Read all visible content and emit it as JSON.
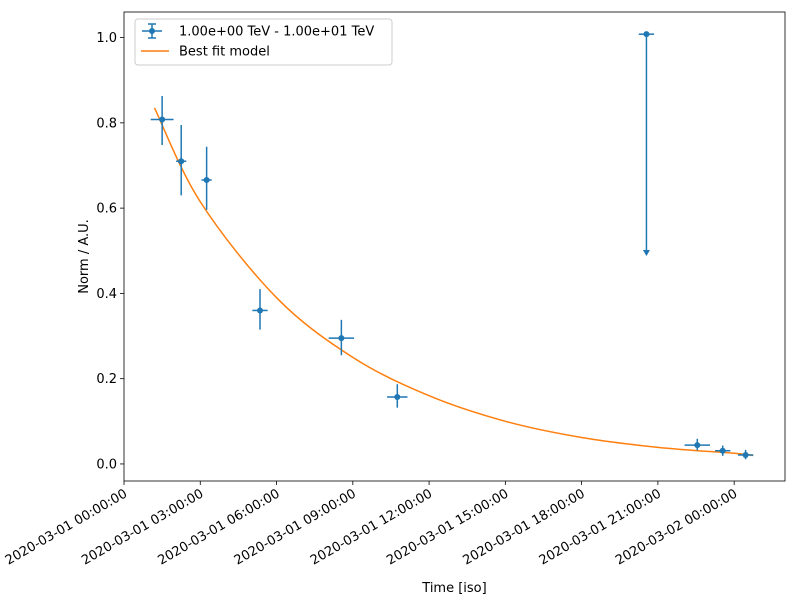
{
  "chart_data": {
    "type": "scatter",
    "xlabel": "Time [iso]",
    "ylabel": "Norm / A.U.",
    "x_range": [
      "2020-03-01 00:00:00",
      "2020-03-02 02:00:00"
    ],
    "ylim": [
      -0.04,
      1.06
    ],
    "x_ticks": [
      "2020-03-01 00:00:00",
      "2020-03-01 03:00:00",
      "2020-03-01 06:00:00",
      "2020-03-01 09:00:00",
      "2020-03-01 12:00:00",
      "2020-03-01 15:00:00",
      "2020-03-01 18:00:00",
      "2020-03-01 21:00:00",
      "2020-03-02 00:00:00"
    ],
    "y_ticks": [
      "0.0",
      "0.2",
      "0.4",
      "0.6",
      "0.8",
      "1.0"
    ],
    "grid": false,
    "legend_position": "top-left",
    "series": [
      {
        "name": "1.00e+00 TeV - 1.00e+01 TeV",
        "kind": "errorbar",
        "color": "#1f77b4",
        "points": [
          {
            "time": "2020-03-01 01:30:00",
            "time_min": "2020-03-01 01:03:00",
            "time_max": "2020-03-01 01:57:00",
            "y": 0.808,
            "y_err_low": 0.06,
            "y_err_high": 0.055
          },
          {
            "time": "2020-03-01 02:15:00",
            "time_min": "2020-03-01 02:03:00",
            "time_max": "2020-03-01 02:27:00",
            "y": 0.71,
            "y_err_low": 0.08,
            "y_err_high": 0.085
          },
          {
            "time": "2020-03-01 03:15:00",
            "time_min": "2020-03-01 03:03:00",
            "time_max": "2020-03-01 03:27:00",
            "y": 0.666,
            "y_err_low": 0.07,
            "y_err_high": 0.078
          },
          {
            "time": "2020-03-01 05:21:00",
            "time_min": "2020-03-01 05:03:00",
            "time_max": "2020-03-01 05:39:00",
            "y": 0.36,
            "y_err_low": 0.045,
            "y_err_high": 0.05
          },
          {
            "time": "2020-03-01 08:33:00",
            "time_min": "2020-03-01 08:03:00",
            "time_max": "2020-03-01 09:03:00",
            "y": 0.295,
            "y_err_low": 0.04,
            "y_err_high": 0.043
          },
          {
            "time": "2020-03-01 10:45:00",
            "time_min": "2020-03-01 10:21:00",
            "time_max": "2020-03-01 11:09:00",
            "y": 0.157,
            "y_err_low": 0.025,
            "y_err_high": 0.03
          },
          {
            "time": "2020-03-01 22:33:00",
            "time_min": "2020-03-01 22:03:00",
            "time_max": "2020-03-01 23:03:00",
            "y": 0.044,
            "y_err_low": 0.012,
            "y_err_high": 0.015
          },
          {
            "time": "2020-03-01 23:33:00",
            "time_min": "2020-03-01 23:15:00",
            "time_max": "2020-03-01 23:51:00",
            "y": 0.031,
            "y_err_low": 0.012,
            "y_err_high": 0.012
          },
          {
            "time": "2020-03-02 00:27:00",
            "time_min": "2020-03-02 00:09:00",
            "time_max": "2020-03-02 00:45:00",
            "y": 0.021,
            "y_err_low": 0.01,
            "y_err_high": 0.012
          }
        ],
        "upper_limits": [
          {
            "time": "2020-03-01 20:33:00",
            "time_min": "2020-03-01 20:15:00",
            "time_max": "2020-03-01 20:51:00",
            "y": 1.008,
            "arrow_to": 0.49
          }
        ]
      },
      {
        "name": "Best fit model",
        "kind": "line",
        "color": "#ff7f0e",
        "x": [
          "2020-03-01 01:12:00",
          "2020-03-01 03:00:00",
          "2020-03-01 06:00:00",
          "2020-03-01 09:00:00",
          "2020-03-01 12:00:00",
          "2020-03-01 15:00:00",
          "2020-03-01 18:00:00",
          "2020-03-01 21:00:00",
          "2020-03-02 00:00:00",
          "2020-03-02 00:45:00"
        ],
        "y": [
          0.835,
          0.615,
          0.39,
          0.25,
          0.16,
          0.1,
          0.062,
          0.039,
          0.025,
          0.02
        ]
      }
    ]
  }
}
